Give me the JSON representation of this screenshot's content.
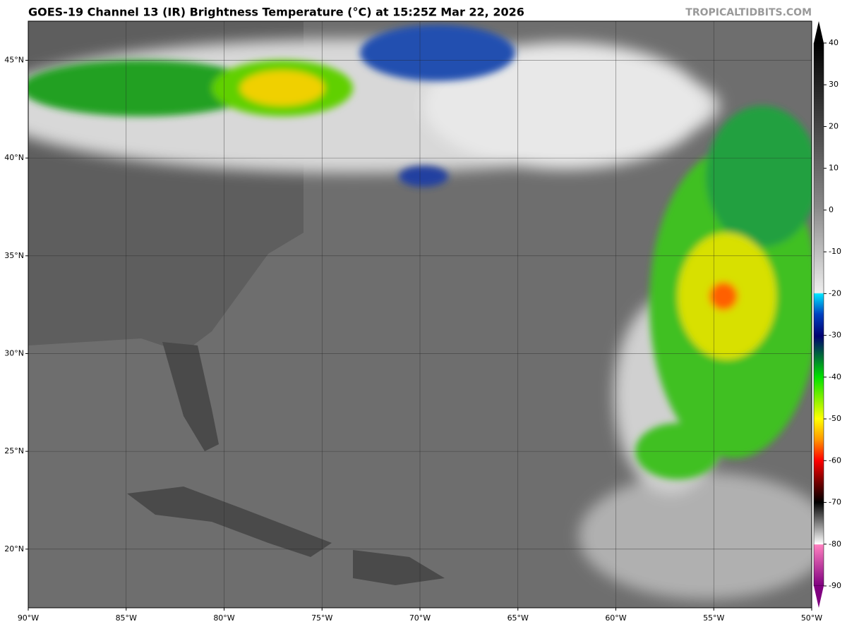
{
  "header": {
    "title": "GOES-19 Channel 13 (IR) Brightness Temperature (°C) at 15:25Z Mar 22, 2026",
    "credit": "TROPICALTIDBITS.COM"
  },
  "map": {
    "xlim": [
      -90,
      -50
    ],
    "ylim": [
      17,
      47
    ],
    "xticks": [
      {
        "value": -90,
        "label": "90°W"
      },
      {
        "value": -85,
        "label": "85°W"
      },
      {
        "value": -80,
        "label": "80°W"
      },
      {
        "value": -75,
        "label": "75°W"
      },
      {
        "value": -70,
        "label": "70°W"
      },
      {
        "value": -65,
        "label": "65°W"
      },
      {
        "value": -60,
        "label": "60°W"
      },
      {
        "value": -55,
        "label": "55°W"
      },
      {
        "value": -50,
        "label": "50°W"
      }
    ],
    "yticks": [
      {
        "value": 20,
        "label": "20°N"
      },
      {
        "value": 25,
        "label": "25°N"
      },
      {
        "value": 30,
        "label": "30°N"
      },
      {
        "value": 35,
        "label": "35°N"
      },
      {
        "value": 40,
        "label": "40°N"
      },
      {
        "value": 45,
        "label": "45°N"
      }
    ]
  },
  "colorbar": {
    "lim": [
      -90,
      40
    ],
    "ticks": [
      40,
      30,
      20,
      10,
      0,
      -10,
      -20,
      -30,
      -40,
      -50,
      -60,
      -70,
      -80,
      -90
    ]
  }
}
